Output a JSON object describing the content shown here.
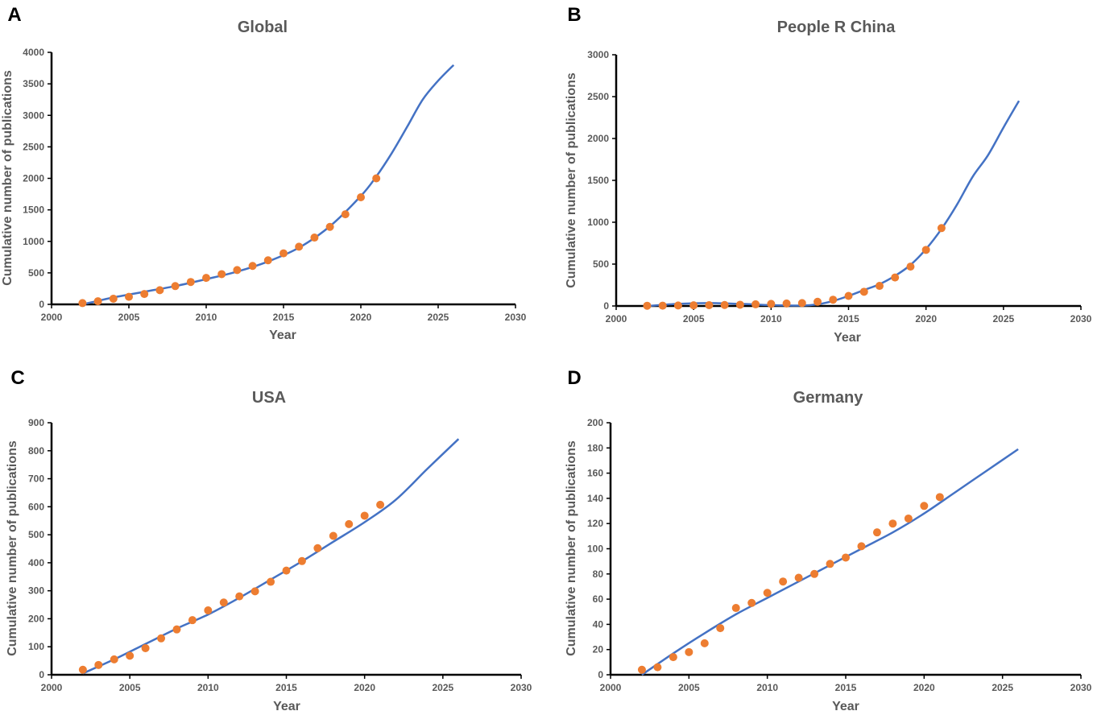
{
  "colors": {
    "points": "#ED7D31",
    "fit": "#4472C4",
    "text": "#595959",
    "axes": "#000000"
  },
  "chart_data": [
    {
      "type": "scatter",
      "panel_label": "A",
      "title": "Global",
      "xlabel": "Year",
      "ylabel": "Cumulative number of publications",
      "xlim": [
        2000,
        2030
      ],
      "ylim": [
        0,
        4000
      ],
      "xticks": [
        2000,
        2005,
        2010,
        2015,
        2020,
        2025,
        2030
      ],
      "yticks": [
        0,
        500,
        1000,
        1500,
        2000,
        2500,
        3000,
        3500,
        4000
      ],
      "x": [
        2002,
        2003,
        2004,
        2005,
        2006,
        2007,
        2008,
        2009,
        2010,
        2011,
        2012,
        2013,
        2014,
        2015,
        2016,
        2017,
        2018,
        2019,
        2020,
        2021
      ],
      "y": [
        20,
        50,
        90,
        120,
        165,
        225,
        290,
        355,
        420,
        480,
        545,
        610,
        700,
        810,
        915,
        1060,
        1230,
        1430,
        1700,
        2000
      ],
      "fit": {
        "x": [
          2002,
          2004,
          2006,
          2008,
          2010,
          2012,
          2014,
          2016,
          2018,
          2020,
          2021,
          2022,
          2023,
          2024,
          2025,
          2026
        ],
        "y": [
          0,
          110,
          200,
          290,
          400,
          520,
          680,
          900,
          1240,
          1720,
          2030,
          2400,
          2820,
          3250,
          3550,
          3800
        ]
      }
    },
    {
      "type": "scatter",
      "panel_label": "B",
      "title": "People R China",
      "xlabel": "Year",
      "ylabel": "Cumulative number of publications",
      "xlim": [
        2000,
        2030
      ],
      "ylim": [
        0,
        3000
      ],
      "xticks": [
        2000,
        2005,
        2010,
        2015,
        2020,
        2025,
        2030
      ],
      "yticks": [
        0,
        500,
        1000,
        1500,
        2000,
        2500,
        3000
      ],
      "x": [
        2002,
        2003,
        2004,
        2005,
        2006,
        2007,
        2008,
        2009,
        2010,
        2011,
        2012,
        2013,
        2014,
        2015,
        2016,
        2017,
        2018,
        2019,
        2020,
        2021
      ],
      "y": [
        3,
        4,
        6,
        8,
        10,
        12,
        15,
        20,
        25,
        30,
        35,
        50,
        75,
        120,
        170,
        240,
        340,
        470,
        670,
        930
      ],
      "fit": {
        "x": [
          2002,
          2004,
          2006,
          2008,
          2010,
          2012,
          2013,
          2014,
          2015,
          2016,
          2017,
          2018,
          2019,
          2020,
          2021,
          2022,
          2023,
          2024,
          2025,
          2026
        ],
        "y": [
          0,
          25,
          35,
          25,
          10,
          5,
          20,
          60,
          120,
          190,
          260,
          360,
          490,
          680,
          920,
          1210,
          1540,
          1800,
          2130,
          2450
        ]
      }
    },
    {
      "type": "scatter",
      "panel_label": "C",
      "title": "USA",
      "xlabel": "Year",
      "ylabel": "Cumulative number of publications",
      "xlim": [
        2000,
        2030
      ],
      "ylim": [
        0,
        900
      ],
      "xticks": [
        2000,
        2005,
        2010,
        2015,
        2020,
        2025,
        2030
      ],
      "yticks": [
        0,
        100,
        200,
        300,
        400,
        500,
        600,
        700,
        800,
        900
      ],
      "x": [
        2002,
        2003,
        2004,
        2005,
        2006,
        2007,
        2008,
        2009,
        2010,
        2011,
        2012,
        2013,
        2014,
        2015,
        2016,
        2017,
        2018,
        2019,
        2020,
        2021
      ],
      "y": [
        18,
        35,
        55,
        68,
        95,
        130,
        162,
        195,
        230,
        258,
        280,
        298,
        332,
        372,
        406,
        452,
        496,
        538,
        568,
        607
      ],
      "fit": {
        "x": [
          2002,
          2004,
          2006,
          2008,
          2010,
          2012,
          2014,
          2016,
          2018,
          2020,
          2022,
          2024,
          2026
        ],
        "y": [
          5,
          55,
          110,
          165,
          215,
          275,
          340,
          405,
          475,
          545,
          625,
          735,
          842
        ]
      }
    },
    {
      "type": "scatter",
      "panel_label": "D",
      "title": "Germany",
      "xlabel": "Year",
      "ylabel": "Cumulative number of publications",
      "xlim": [
        2000,
        2030
      ],
      "ylim": [
        0,
        200
      ],
      "xticks": [
        2000,
        2005,
        2010,
        2015,
        2020,
        2025,
        2030
      ],
      "yticks": [
        0,
        20,
        40,
        60,
        80,
        100,
        120,
        140,
        160,
        180,
        200
      ],
      "x": [
        2002,
        2003,
        2004,
        2005,
        2006,
        2007,
        2008,
        2009,
        2010,
        2011,
        2012,
        2013,
        2014,
        2015,
        2016,
        2017,
        2018,
        2019,
        2020,
        2021
      ],
      "y": [
        4,
        6,
        14,
        18,
        25,
        37,
        53,
        57,
        65,
        74,
        77,
        80,
        88,
        93,
        102,
        113,
        120,
        124,
        134,
        141
      ],
      "fit": {
        "x": [
          2002,
          2004,
          2006,
          2008,
          2010,
          2012,
          2014,
          2016,
          2018,
          2020,
          2022,
          2024,
          2026
        ],
        "y": [
          0,
          17,
          33,
          48,
          61,
          74,
          87,
          100,
          113,
          128,
          145,
          162,
          179
        ]
      }
    }
  ]
}
